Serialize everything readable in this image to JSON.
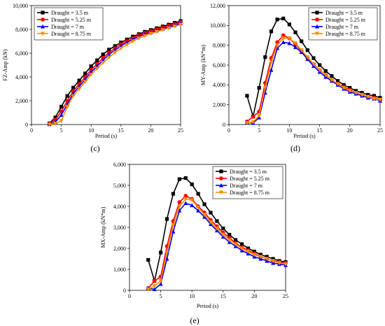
{
  "chart_data": [
    {
      "type": "line",
      "panel_label": "(c)",
      "xlabel": "Period (s)",
      "ylabel": "FZ-Amp (kN)",
      "xlim": [
        0,
        25
      ],
      "ylim": [
        0,
        10000
      ],
      "xticks": [
        0,
        5,
        10,
        15,
        20,
        25
      ],
      "yticks": [
        0,
        2000,
        4000,
        6000,
        8000,
        10000
      ],
      "ytick_labels": [
        "0",
        "2,000",
        "4,000",
        "6,000",
        "8,000",
        "10,000"
      ],
      "legend_position": "top-left",
      "x": [
        3,
        4,
        5,
        6,
        7,
        8,
        9,
        10,
        11,
        12,
        13,
        14,
        15,
        16,
        17,
        18,
        19,
        20,
        21,
        22,
        23,
        24,
        25
      ],
      "series": [
        {
          "name": "Draught = 3.5 m",
          "color": "#000000",
          "marker": "square",
          "values": [
            100,
            600,
            1500,
            2400,
            3100,
            3700,
            4300,
            4900,
            5400,
            5900,
            6300,
            6600,
            6900,
            7150,
            7400,
            7600,
            7800,
            7950,
            8100,
            8250,
            8400,
            8550,
            8700
          ]
        },
        {
          "name": "Draught = 5.25 m",
          "color": "#ff0000",
          "marker": "circle",
          "values": [
            50,
            400,
            1100,
            2000,
            2800,
            3400,
            4000,
            4600,
            5100,
            5600,
            6050,
            6400,
            6750,
            7000,
            7250,
            7500,
            7700,
            7850,
            8000,
            8150,
            8300,
            8450,
            8600
          ]
        },
        {
          "name": "Draught = 7 m",
          "color": "#0000ff",
          "marker": "triangle-up",
          "values": [
            20,
            200,
            800,
            1700,
            2600,
            3200,
            3800,
            4400,
            4900,
            5400,
            5900,
            6250,
            6600,
            6900,
            7150,
            7400,
            7600,
            7750,
            7900,
            8050,
            8200,
            8350,
            8500
          ]
        },
        {
          "name": "Draught = 8.75 m",
          "color": "#ff8c00",
          "marker": "triangle-down",
          "values": [
            10,
            80,
            300,
            1500,
            2400,
            3000,
            3600,
            4200,
            4700,
            5200,
            5650,
            6050,
            6400,
            6700,
            7000,
            7250,
            7450,
            7650,
            7800,
            7950,
            8100,
            8250,
            8400
          ]
        }
      ]
    },
    {
      "type": "line",
      "panel_label": "(d)",
      "xlabel": "Period (s)",
      "ylabel": "MY-Amp (kN*m)",
      "xlim": [
        0,
        25
      ],
      "ylim": [
        0,
        12000
      ],
      "xticks": [
        0,
        5,
        10,
        15,
        20,
        25
      ],
      "yticks": [
        0,
        2000,
        4000,
        6000,
        8000,
        10000,
        12000
      ],
      "ytick_labels": [
        "0",
        "2,000",
        "4,000",
        "6,000",
        "8,000",
        "10,000",
        "12,000"
      ],
      "legend_position": "top-right",
      "x": [
        3,
        4,
        5,
        6,
        7,
        8,
        9,
        10,
        11,
        12,
        13,
        14,
        15,
        16,
        17,
        18,
        19,
        20,
        21,
        22,
        23,
        24,
        25
      ],
      "series": [
        {
          "name": "Draught = 3.5 m",
          "color": "#000000",
          "marker": "square",
          "values": [
            2900,
            800,
            3700,
            6800,
            9400,
            10600,
            10700,
            10100,
            9300,
            8400,
            7500,
            6700,
            6000,
            5400,
            4900,
            4400,
            4000,
            3700,
            3400,
            3200,
            3000,
            2900,
            2700
          ]
        },
        {
          "name": "Draught = 5.25 m",
          "color": "#ff0000",
          "marker": "circle",
          "values": [
            300,
            800,
            1300,
            4200,
            6700,
            8300,
            9000,
            8700,
            8100,
            7400,
            6700,
            6100,
            5500,
            5000,
            4500,
            4100,
            3800,
            3500,
            3200,
            3000,
            2800,
            2700,
            2500
          ]
        },
        {
          "name": "Draught = 7 m",
          "color": "#0000ff",
          "marker": "triangle-up",
          "values": [
            200,
            150,
            700,
            3200,
            5500,
            7700,
            8300,
            8200,
            7800,
            7300,
            6600,
            5900,
            5300,
            4800,
            4400,
            4000,
            3600,
            3300,
            3100,
            2900,
            2700,
            2600,
            2400
          ]
        },
        {
          "name": "Draught = 8.75 m",
          "color": "#ff8c00",
          "marker": "triangle-down",
          "values": [
            150,
            250,
            900,
            3700,
            6300,
            8000,
            8700,
            8700,
            8200,
            7500,
            6800,
            6100,
            5500,
            5000,
            4500,
            4100,
            3700,
            3400,
            3200,
            3000,
            2800,
            2600,
            2500
          ]
        }
      ]
    },
    {
      "type": "line",
      "panel_label": "(e)",
      "xlabel": "Period (s)",
      "ylabel": "MX-Amp (kN*m)",
      "xlim": [
        0,
        25
      ],
      "ylim": [
        0,
        6000
      ],
      "xticks": [
        0,
        5,
        10,
        15,
        20,
        25
      ],
      "yticks": [
        0,
        1000,
        2000,
        3000,
        4000,
        5000,
        6000
      ],
      "ytick_labels": [
        "0",
        "1,000",
        "2,000",
        "3,000",
        "4,000",
        "5,000",
        "6,000"
      ],
      "legend_position": "top-right",
      "x": [
        3,
        4,
        5,
        6,
        7,
        8,
        9,
        10,
        11,
        12,
        13,
        14,
        15,
        16,
        17,
        18,
        19,
        20,
        21,
        22,
        23,
        24,
        25
      ],
      "series": [
        {
          "name": "Draught = 3.5 m",
          "color": "#000000",
          "marker": "square",
          "values": [
            1450,
            450,
            1800,
            3400,
            4600,
            5300,
            5350,
            5050,
            4600,
            4100,
            3700,
            3300,
            2950,
            2650,
            2400,
            2200,
            2000,
            1850,
            1700,
            1600,
            1500,
            1400,
            1350
          ]
        },
        {
          "name": "Draught = 5.25 m",
          "color": "#ff0000",
          "marker": "circle",
          "values": [
            100,
            450,
            650,
            2100,
            3300,
            4200,
            4500,
            4350,
            4000,
            3700,
            3350,
            3050,
            2750,
            2500,
            2250,
            2050,
            1900,
            1750,
            1600,
            1500,
            1400,
            1350,
            1300
          ]
        },
        {
          "name": "Draught = 7 m",
          "color": "#0000ff",
          "marker": "triangle-up",
          "values": [
            100,
            50,
            300,
            1500,
            2800,
            3800,
            4150,
            4050,
            3800,
            3500,
            3150,
            2850,
            2550,
            2300,
            2100,
            1900,
            1750,
            1600,
            1500,
            1400,
            1300,
            1250,
            1200
          ]
        },
        {
          "name": "Draught = 8.75 m",
          "color": "#ff8c00",
          "marker": "triangle-down",
          "values": [
            50,
            200,
            450,
            1800,
            3100,
            4000,
            4350,
            4300,
            3950,
            3600,
            3250,
            2950,
            2650,
            2400,
            2200,
            2000,
            1850,
            1700,
            1600,
            1500,
            1400,
            1300,
            1250
          ]
        }
      ]
    }
  ]
}
